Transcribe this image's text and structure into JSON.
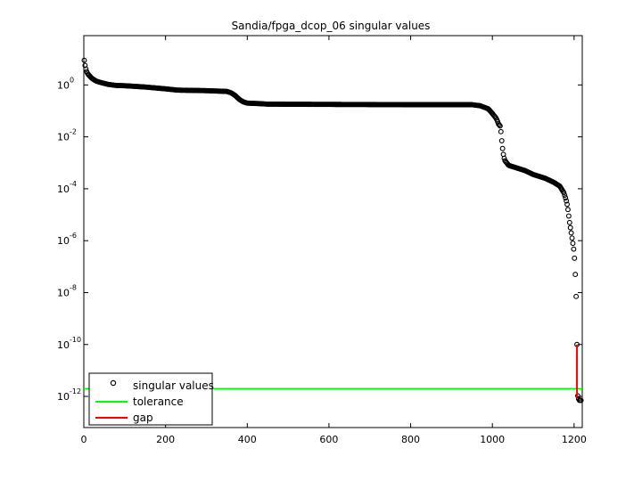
{
  "chart_data": {
    "type": "scatter",
    "title": "Sandia/fpga_dcop_06 singular values",
    "xlabel": "",
    "ylabel": "",
    "xlim": [
      0,
      1220
    ],
    "ylim_log10": [
      -13.2,
      1.9
    ],
    "y_scale": "log",
    "grid": false,
    "x_ticks": [
      0,
      200,
      400,
      600,
      800,
      1000,
      1200
    ],
    "y_ticks": [
      {
        "base": "10",
        "exp": "0",
        "value_log10": 0
      },
      {
        "base": "10",
        "exp": "-2",
        "value_log10": -2
      },
      {
        "base": "10",
        "exp": "-4",
        "value_log10": -4
      },
      {
        "base": "10",
        "exp": "-6",
        "value_log10": -6
      },
      {
        "base": "10",
        "exp": "-8",
        "value_log10": -8
      },
      {
        "base": "10",
        "exp": "-10",
        "value_log10": -10
      },
      {
        "base": "10",
        "exp": "-12",
        "value_log10": -12
      }
    ],
    "legend": {
      "placement": "bottom-left",
      "entries": [
        {
          "label": "singular values",
          "marker": "circle",
          "color": "#000000"
        },
        {
          "label": "tolerance",
          "marker": "line",
          "color": "#00ff00"
        },
        {
          "label": "gap",
          "marker": "line",
          "color": "#ff0000"
        }
      ]
    },
    "singular_values_profile_log10": [
      [
        1,
        0.95
      ],
      [
        3,
        0.75
      ],
      [
        6,
        0.55
      ],
      [
        10,
        0.42
      ],
      [
        20,
        0.25
      ],
      [
        30,
        0.15
      ],
      [
        40,
        0.1
      ],
      [
        60,
        0.02
      ],
      [
        80,
        -0.02
      ],
      [
        100,
        -0.03
      ],
      [
        150,
        -0.08
      ],
      [
        200,
        -0.15
      ],
      [
        230,
        -0.2
      ],
      [
        300,
        -0.22
      ],
      [
        350,
        -0.25
      ],
      [
        360,
        -0.3
      ],
      [
        370,
        -0.4
      ],
      [
        380,
        -0.55
      ],
      [
        390,
        -0.65
      ],
      [
        400,
        -0.7
      ],
      [
        430,
        -0.72
      ],
      [
        450,
        -0.74
      ],
      [
        600,
        -0.75
      ],
      [
        800,
        -0.76
      ],
      [
        950,
        -0.76
      ],
      [
        970,
        -0.8
      ],
      [
        990,
        -0.92
      ],
      [
        1000,
        -1.1
      ],
      [
        1010,
        -1.3
      ],
      [
        1015,
        -1.5
      ],
      [
        1020,
        -1.6
      ],
      [
        1022,
        -2.0
      ],
      [
        1024,
        -2.3
      ],
      [
        1026,
        -2.6
      ],
      [
        1030,
        -2.9
      ],
      [
        1040,
        -3.1
      ],
      [
        1060,
        -3.2
      ],
      [
        1080,
        -3.3
      ],
      [
        1100,
        -3.45
      ],
      [
        1130,
        -3.6
      ],
      [
        1150,
        -3.75
      ],
      [
        1165,
        -3.9
      ],
      [
        1175,
        -4.15
      ],
      [
        1180,
        -4.4
      ],
      [
        1183,
        -4.6
      ],
      [
        1186,
        -4.9
      ],
      [
        1188,
        -5.2
      ],
      [
        1190,
        -5.4
      ],
      [
        1193,
        -5.7
      ],
      [
        1196,
        -6.0
      ],
      [
        1198,
        -6.2
      ],
      [
        1200,
        -6.45
      ],
      [
        1202,
        -6.9
      ],
      [
        1204,
        -7.7
      ],
      [
        1206,
        -8.6
      ],
      [
        1207,
        -10.0
      ],
      [
        1208,
        -11.9
      ],
      [
        1210,
        -12.05
      ],
      [
        1212,
        -12.15
      ],
      [
        1215,
        -12.15
      ],
      [
        1218,
        -12.15
      ]
    ],
    "tolerance_log10": -11.7,
    "gap": {
      "x": 1207,
      "from_log10": -10.0,
      "to_log10": -12.05
    }
  }
}
